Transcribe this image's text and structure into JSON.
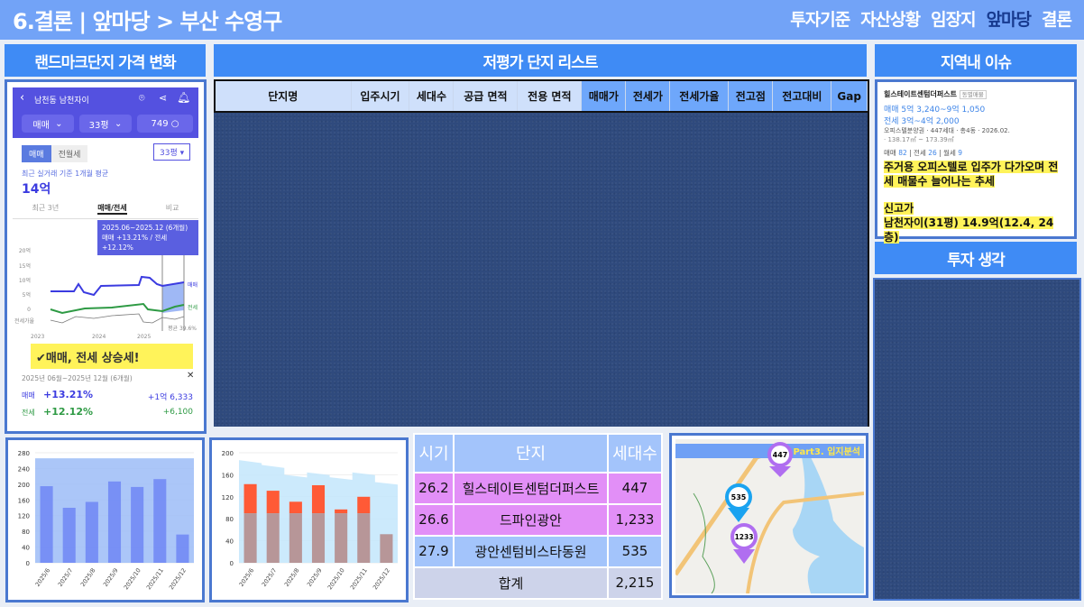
{
  "header": {
    "title": "6.결론 | 앞마당 > 부산 수영구",
    "nav": [
      "투자기준",
      "자산상황",
      "임장지",
      "앞마당",
      "결론"
    ],
    "active_nav": "앞마당",
    "colors": {
      "bar": "#72a3f7",
      "section": "#3f8bf5",
      "active": "#173a8f"
    }
  },
  "sections": {
    "landmark": "랜드마크단지 가격 변화",
    "list": "저평가 단지 리스트",
    "issue": "지역내 이슈",
    "thoughts": "투자 생각"
  },
  "phone": {
    "location": "남천동 남천자이",
    "filters": [
      "매매",
      "33평",
      "749"
    ],
    "tabs_type": [
      "매매",
      "전월세"
    ],
    "size_select": "33평",
    "avg_label": "최근 실거래 기준 1개월 평균",
    "avg_value": "14억",
    "view_tabs": [
      "최근 3년",
      "매매/전세",
      "비교"
    ],
    "tooltip_period": "2025.06~2025.12 (6개월)",
    "tooltip_change": "매매 +13.21%  /  전세 +12.12%",
    "y_ticks": [
      "20억",
      "15억",
      "10억",
      "5억",
      "0"
    ],
    "ratio_label": "전세가율",
    "series_labels": [
      "매매",
      "전세"
    ],
    "avg_ratio": "평균 39.6%",
    "x_ticks": [
      "2023",
      "2024",
      "2025"
    ],
    "callout": "✔매매, 전세 상승세!",
    "summary_period": "2025년 06월~2025년 12월 (6개월)",
    "sale_label": "매매",
    "sale_pct": "+13.21%",
    "sale_amt": "+1억 6,333",
    "jeonse_label": "전세",
    "jeonse_pct": "+12.12%",
    "jeonse_amt": "+6,100",
    "colors": {
      "sale": "#3b3be0",
      "jeonse": "#2e9a44",
      "top": "#5451e0"
    }
  },
  "list_table": {
    "columns": [
      "단지명",
      "입주시기",
      "세대수",
      "공급 면적",
      "전용 면적",
      "매매가",
      "전세가",
      "전세가율",
      "전고점",
      "전고대비",
      "Gap"
    ]
  },
  "issue": {
    "name": "힐스테이트센텀더퍼스트",
    "badge": "동별매물",
    "sale_range": "매매 5억 3,240~9억 1,050",
    "jeonse_range": "전세 3억~4억 2,000",
    "info1": "오피스텔분양권 · 447세대 · 총4동 · 2026.02.",
    "info2": "· 138.17㎡ ~ 173.39㎡",
    "counts": [
      {
        "label": "매매",
        "value": "82"
      },
      {
        "label": "전세",
        "value": "26"
      },
      {
        "label": "월세",
        "value": "9"
      }
    ],
    "note1": "주거용 오피스텔로 입주가 다가오며 전세 매물수 늘어나는 추세",
    "note2_title": "신고가",
    "note2": "남천자이(31평) 14.9억(12.4, 24층)"
  },
  "supply": {
    "headers": [
      "시기",
      "단지",
      "세대수"
    ],
    "rows": [
      {
        "period": "26.2",
        "name": "힐스테이트센텀더퍼스트",
        "units": "447",
        "color": "#e28ff7"
      },
      {
        "period": "26.6",
        "name": "드파인광안",
        "units": "1,233",
        "color": "#e28ff7"
      },
      {
        "period": "27.9",
        "name": "광안센텀비스타동원",
        "units": "535",
        "color": "#a3c4fb"
      }
    ],
    "total_label": "합계",
    "total": "2,215"
  },
  "map": {
    "banner": "Part3. 입지분석",
    "pins": [
      {
        "label": "447",
        "color": "#b06ef0"
      },
      {
        "label": "535",
        "color": "#1aa3f0"
      },
      {
        "label": "1233",
        "color": "#b06ef0"
      }
    ]
  },
  "chart_data": [
    {
      "type": "bar",
      "categories": [
        "2025/6",
        "2025/7",
        "2025/8",
        "2025/9",
        "2025/10",
        "2025/11",
        "2025/12"
      ],
      "values": [
        195,
        140,
        155,
        207,
        193,
        213,
        72
      ],
      "ylim": [
        0,
        280
      ],
      "yticks": [
        0,
        40,
        80,
        120,
        160,
        200,
        240,
        280
      ],
      "secondary_ylim": [
        0,
        4000
      ],
      "secondary_yticks": [
        0,
        500,
        1000,
        1500,
        2000,
        2500,
        3000,
        3500,
        4000
      ],
      "area_value": 3800,
      "colors": {
        "bar": "#6f86f5",
        "area": "#9cbcf7"
      },
      "grid": true
    },
    {
      "type": "bar",
      "categories": [
        "2025/6",
        "2025/7",
        "2025/8",
        "2025/9",
        "2025/10",
        "2025/11",
        "2025/12"
      ],
      "values": [
        143,
        131,
        111,
        141,
        97,
        120,
        52
      ],
      "ylim": [
        0,
        200
      ],
      "yticks": [
        0,
        40,
        80,
        120,
        160,
        200
      ],
      "secondary_ylim": [
        0,
        450
      ],
      "area_values": [
        420,
        400,
        360,
        370,
        350,
        370,
        330
      ],
      "colors": {
        "bar": "#ff5a36",
        "bar_lower": "#b58d8d",
        "area": "#c3e6fb"
      },
      "grid": true
    }
  ]
}
